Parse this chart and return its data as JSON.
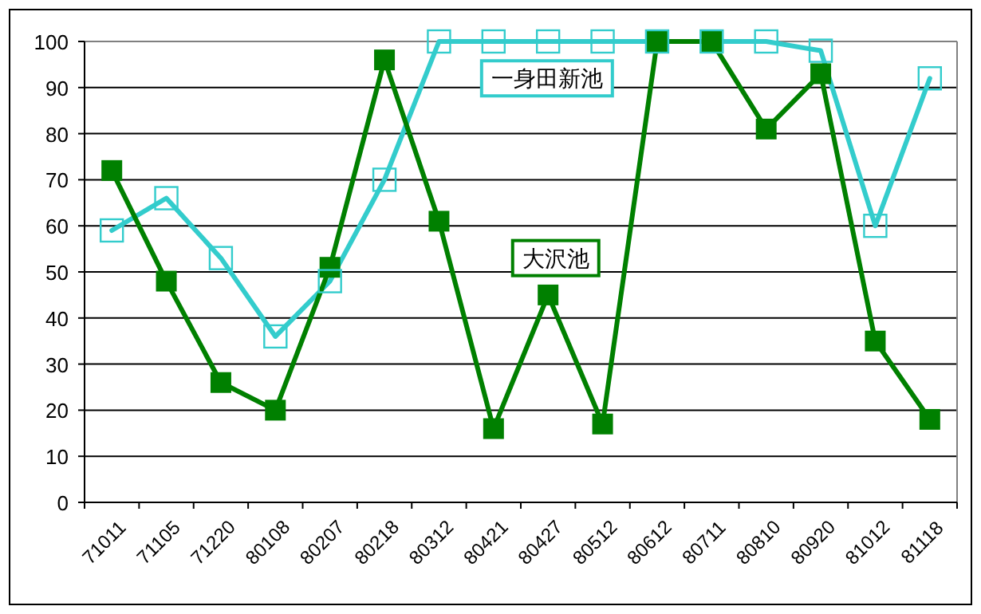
{
  "chart_data": {
    "type": "line",
    "categories": [
      "71011",
      "71105",
      "71220",
      "80108",
      "80207",
      "80218",
      "80312",
      "80421",
      "80427",
      "80512",
      "80612",
      "80711",
      "80810",
      "80920",
      "81012",
      "81118"
    ],
    "series": [
      {
        "name": "一身田新池",
        "color": "#33cccc",
        "values": [
          59,
          66,
          53,
          36,
          48,
          70,
          100,
          100,
          100,
          100,
          100,
          100,
          100,
          98,
          60,
          92
        ]
      },
      {
        "name": "大沢池",
        "color": "#008000",
        "values": [
          72,
          48,
          26,
          20,
          51,
          96,
          61,
          16,
          45,
          17,
          100,
          100,
          81,
          93,
          35,
          18
        ]
      }
    ],
    "ylim": [
      0,
      100
    ],
    "yticks": [
      0,
      10,
      20,
      30,
      40,
      50,
      60,
      70,
      80,
      90,
      100
    ],
    "grid": "y",
    "marker": "square",
    "line_style": "solid"
  }
}
